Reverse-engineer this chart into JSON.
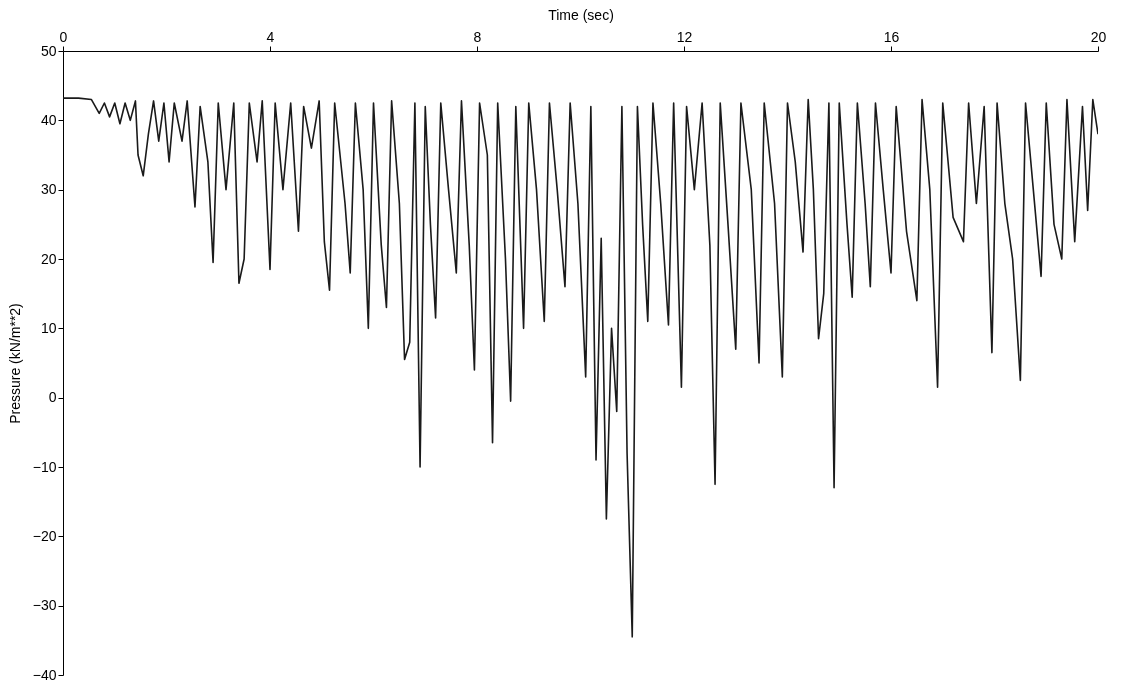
{
  "chart_data": {
    "type": "line",
    "xlabel": "Time (sec)",
    "ylabel": "Pressure (kN/m**2)",
    "xlim": [
      0,
      20
    ],
    "xticks": [
      0,
      4,
      8,
      12,
      16,
      20
    ],
    "ylim": [
      -40,
      50
    ],
    "yticks": [
      -40,
      -30,
      -20,
      -10,
      0,
      10,
      20,
      30,
      40,
      50
    ],
    "x": [
      0,
      0.3,
      0.55,
      0.7,
      0.8,
      0.9,
      1.0,
      1.1,
      1.2,
      1.3,
      1.4,
      1.45,
      1.55,
      1.65,
      1.75,
      1.85,
      1.95,
      2.05,
      2.15,
      2.3,
      2.4,
      2.55,
      2.65,
      2.8,
      2.9,
      3.0,
      3.15,
      3.3,
      3.4,
      3.5,
      3.6,
      3.75,
      3.85,
      4.0,
      4.1,
      4.25,
      4.4,
      4.55,
      4.65,
      4.8,
      4.95,
      5.05,
      5.15,
      5.25,
      5.45,
      5.55,
      5.65,
      5.8,
      5.9,
      6.0,
      6.15,
      6.25,
      6.35,
      6.5,
      6.6,
      6.7,
      6.8,
      6.9,
      7.0,
      7.1,
      7.2,
      7.3,
      7.45,
      7.6,
      7.7,
      7.85,
      7.95,
      8.05,
      8.2,
      8.3,
      8.4,
      8.55,
      8.65,
      8.75,
      8.9,
      9.0,
      9.15,
      9.3,
      9.4,
      9.55,
      9.7,
      9.8,
      9.95,
      10.1,
      10.2,
      10.3,
      10.4,
      10.5,
      10.6,
      10.7,
      10.8,
      10.9,
      11.0,
      11.1,
      11.2,
      11.3,
      11.4,
      11.55,
      11.7,
      11.8,
      11.95,
      12.05,
      12.2,
      12.35,
      12.5,
      12.6,
      12.7,
      12.85,
      13.0,
      13.1,
      13.3,
      13.45,
      13.55,
      13.75,
      13.9,
      14.0,
      14.15,
      14.3,
      14.4,
      14.5,
      14.6,
      14.7,
      14.8,
      14.9,
      15.0,
      15.15,
      15.25,
      15.35,
      15.5,
      15.6,
      15.7,
      15.85,
      16.0,
      16.1,
      16.3,
      16.5,
      16.6,
      16.75,
      16.9,
      17.0,
      17.2,
      17.4,
      17.5,
      17.65,
      17.8,
      17.95,
      18.05,
      18.2,
      18.35,
      18.5,
      18.6,
      18.75,
      18.9,
      19.0,
      19.15,
      19.3,
      19.4,
      19.55,
      19.7,
      19.8,
      19.9,
      20.0
    ],
    "series": [
      {
        "color": "#1a1a1a",
        "values": [
          43.2,
          43.2,
          43,
          41,
          42.5,
          40.5,
          42.5,
          39.5,
          42.5,
          40,
          42.8,
          35,
          32,
          38,
          42.8,
          37,
          42.5,
          34,
          42.5,
          37,
          42.8,
          27.5,
          42,
          34,
          19.5,
          42.5,
          30,
          42.5,
          16.5,
          20,
          42.5,
          34,
          42.8,
          18.5,
          42.5,
          30,
          42.5,
          24,
          42,
          36,
          42.8,
          22.5,
          15.5,
          42.5,
          28,
          18,
          42.5,
          30,
          10,
          42.5,
          22,
          13,
          42.8,
          28,
          5.5,
          8,
          42.5,
          -10,
          42,
          25,
          11.5,
          42.5,
          30,
          18,
          42.8,
          22,
          4,
          42.5,
          35,
          -6.5,
          42.5,
          20,
          -0.5,
          42,
          10,
          42.5,
          30,
          11,
          42.5,
          30,
          16,
          42.5,
          28,
          3,
          42,
          -9,
          23,
          -17.5,
          10,
          -2,
          42,
          -8,
          -34.5,
          42,
          25,
          11,
          42.5,
          28,
          10.5,
          42.5,
          1.5,
          42,
          30,
          42.5,
          22,
          -12.5,
          42.5,
          25,
          7,
          42.5,
          30,
          5,
          42.5,
          28,
          3,
          42.5,
          34,
          21,
          43,
          30,
          8.5,
          15,
          42.5,
          -13,
          42.5,
          25,
          14.5,
          42.5,
          28,
          16,
          42.5,
          30,
          18,
          42,
          24,
          14,
          43,
          30,
          1.5,
          42.5,
          26,
          22.5,
          42.5,
          28,
          42,
          6.5,
          42.5,
          28,
          20,
          2.5,
          42.5,
          30,
          17.5,
          42.5,
          25,
          20,
          43,
          22.5,
          42,
          27,
          43,
          38
        ]
      }
    ],
    "marker": "none",
    "line_style": "solid"
  }
}
